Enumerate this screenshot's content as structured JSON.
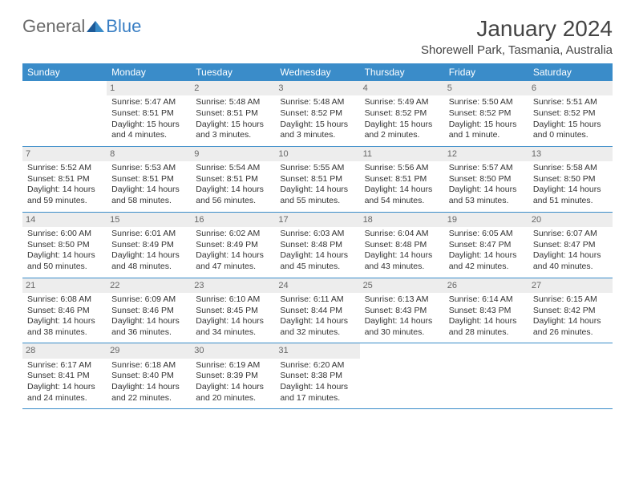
{
  "logo": {
    "general": "General",
    "blue": "Blue"
  },
  "title": "January 2024",
  "location": "Shorewell Park, Tasmania, Australia",
  "colors": {
    "header_bg": "#3a8cc9",
    "header_fg": "#ffffff",
    "divider": "#3a8cc9",
    "daynum_bg": "#ededed",
    "text": "#333333",
    "logo_gray": "#6a6a6a",
    "logo_blue": "#3a7fc4"
  },
  "dow": [
    "Sunday",
    "Monday",
    "Tuesday",
    "Wednesday",
    "Thursday",
    "Friday",
    "Saturday"
  ],
  "weeks": [
    [
      {
        "blank": true
      },
      {
        "n": "1",
        "sunrise": "5:47 AM",
        "sunset": "8:51 PM",
        "daylight": "15 hours and 4 minutes."
      },
      {
        "n": "2",
        "sunrise": "5:48 AM",
        "sunset": "8:51 PM",
        "daylight": "15 hours and 3 minutes."
      },
      {
        "n": "3",
        "sunrise": "5:48 AM",
        "sunset": "8:52 PM",
        "daylight": "15 hours and 3 minutes."
      },
      {
        "n": "4",
        "sunrise": "5:49 AM",
        "sunset": "8:52 PM",
        "daylight": "15 hours and 2 minutes."
      },
      {
        "n": "5",
        "sunrise": "5:50 AM",
        "sunset": "8:52 PM",
        "daylight": "15 hours and 1 minute."
      },
      {
        "n": "6",
        "sunrise": "5:51 AM",
        "sunset": "8:52 PM",
        "daylight": "15 hours and 0 minutes."
      }
    ],
    [
      {
        "n": "7",
        "sunrise": "5:52 AM",
        "sunset": "8:51 PM",
        "daylight": "14 hours and 59 minutes."
      },
      {
        "n": "8",
        "sunrise": "5:53 AM",
        "sunset": "8:51 PM",
        "daylight": "14 hours and 58 minutes."
      },
      {
        "n": "9",
        "sunrise": "5:54 AM",
        "sunset": "8:51 PM",
        "daylight": "14 hours and 56 minutes."
      },
      {
        "n": "10",
        "sunrise": "5:55 AM",
        "sunset": "8:51 PM",
        "daylight": "14 hours and 55 minutes."
      },
      {
        "n": "11",
        "sunrise": "5:56 AM",
        "sunset": "8:51 PM",
        "daylight": "14 hours and 54 minutes."
      },
      {
        "n": "12",
        "sunrise": "5:57 AM",
        "sunset": "8:50 PM",
        "daylight": "14 hours and 53 minutes."
      },
      {
        "n": "13",
        "sunrise": "5:58 AM",
        "sunset": "8:50 PM",
        "daylight": "14 hours and 51 minutes."
      }
    ],
    [
      {
        "n": "14",
        "sunrise": "6:00 AM",
        "sunset": "8:50 PM",
        "daylight": "14 hours and 50 minutes."
      },
      {
        "n": "15",
        "sunrise": "6:01 AM",
        "sunset": "8:49 PM",
        "daylight": "14 hours and 48 minutes."
      },
      {
        "n": "16",
        "sunrise": "6:02 AM",
        "sunset": "8:49 PM",
        "daylight": "14 hours and 47 minutes."
      },
      {
        "n": "17",
        "sunrise": "6:03 AM",
        "sunset": "8:48 PM",
        "daylight": "14 hours and 45 minutes."
      },
      {
        "n": "18",
        "sunrise": "6:04 AM",
        "sunset": "8:48 PM",
        "daylight": "14 hours and 43 minutes."
      },
      {
        "n": "19",
        "sunrise": "6:05 AM",
        "sunset": "8:47 PM",
        "daylight": "14 hours and 42 minutes."
      },
      {
        "n": "20",
        "sunrise": "6:07 AM",
        "sunset": "8:47 PM",
        "daylight": "14 hours and 40 minutes."
      }
    ],
    [
      {
        "n": "21",
        "sunrise": "6:08 AM",
        "sunset": "8:46 PM",
        "daylight": "14 hours and 38 minutes."
      },
      {
        "n": "22",
        "sunrise": "6:09 AM",
        "sunset": "8:46 PM",
        "daylight": "14 hours and 36 minutes."
      },
      {
        "n": "23",
        "sunrise": "6:10 AM",
        "sunset": "8:45 PM",
        "daylight": "14 hours and 34 minutes."
      },
      {
        "n": "24",
        "sunrise": "6:11 AM",
        "sunset": "8:44 PM",
        "daylight": "14 hours and 32 minutes."
      },
      {
        "n": "25",
        "sunrise": "6:13 AM",
        "sunset": "8:43 PM",
        "daylight": "14 hours and 30 minutes."
      },
      {
        "n": "26",
        "sunrise": "6:14 AM",
        "sunset": "8:43 PM",
        "daylight": "14 hours and 28 minutes."
      },
      {
        "n": "27",
        "sunrise": "6:15 AM",
        "sunset": "8:42 PM",
        "daylight": "14 hours and 26 minutes."
      }
    ],
    [
      {
        "n": "28",
        "sunrise": "6:17 AM",
        "sunset": "8:41 PM",
        "daylight": "14 hours and 24 minutes."
      },
      {
        "n": "29",
        "sunrise": "6:18 AM",
        "sunset": "8:40 PM",
        "daylight": "14 hours and 22 minutes."
      },
      {
        "n": "30",
        "sunrise": "6:19 AM",
        "sunset": "8:39 PM",
        "daylight": "14 hours and 20 minutes."
      },
      {
        "n": "31",
        "sunrise": "6:20 AM",
        "sunset": "8:38 PM",
        "daylight": "14 hours and 17 minutes."
      },
      {
        "blank": true
      },
      {
        "blank": true
      },
      {
        "blank": true
      }
    ]
  ]
}
